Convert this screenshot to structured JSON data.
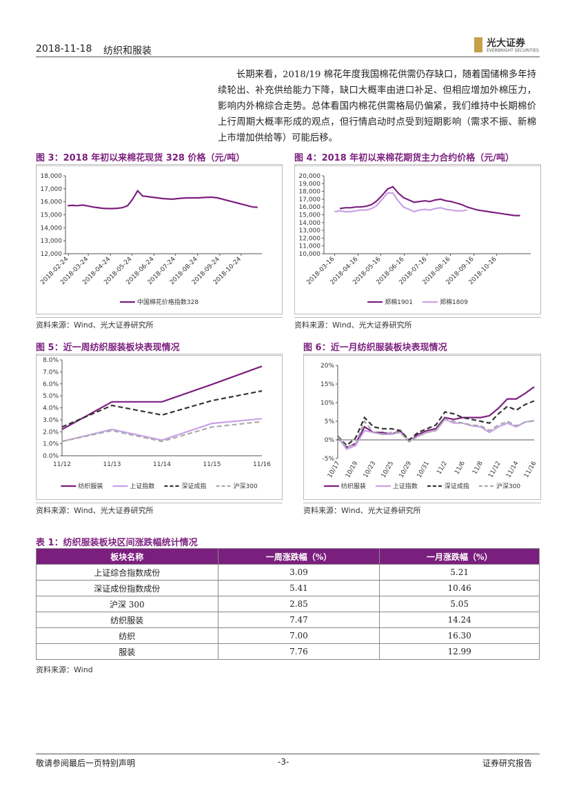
{
  "header": {
    "date": "2018-11-18",
    "section": "纺织和服装",
    "logo": "光大证券",
    "logo_en": "EVERBRIGHT SECURITIES"
  },
  "paragraph": "长期来看，2018/19 棉花年度我国棉花供需仍存缺口，随着国储棉多年持续轮出、补充供给能力下降，缺口大概率由进口补足、但相应增加外棉压力，影响内外棉综合走势。总体看国内棉花供需格局仍偏紧，我们维持中长期棉价上行周期大概率形成的观点，但行情启动时点受到短期影响（需求不振、新棉上市增加供给等）可能后移。",
  "chart_data": [
    {
      "type": "line",
      "title": "图 3：2018 年初以来棉花现货 328 价格（元/吨）",
      "source": "资料来源：Wind、光大证券研究所",
      "x": [
        "2018-02-23",
        "2018-03-02",
        "2018-03-09",
        "2018-03-16",
        "2018-03-23",
        "2018-03-30",
        "2018-04-06",
        "2018-04-13",
        "2018-04-20",
        "2018-04-27",
        "2018-05-04",
        "2018-05-11",
        "2018-05-18",
        "2018-05-25",
        "2018-06-01",
        "2018-06-08",
        "2018-06-15",
        "2018-06-22",
        "2018-06-29",
        "2018-07-06",
        "2018-07-13",
        "2018-07-20",
        "2018-07-27",
        "2018-08-03",
        "2018-08-10",
        "2018-08-17",
        "2018-08-24",
        "2018-08-31",
        "2018-09-07",
        "2018-09-14",
        "2018-09-21",
        "2018-09-28",
        "2018-10-05",
        "2018-10-12",
        "2018-10-19",
        "2018-10-26",
        "2018-11-02",
        "2018-11-09",
        "2018-11-16"
      ],
      "series": [
        {
          "name": "中国棉花价格指数328",
          "color": "#7b1f7e",
          "values": [
            15700,
            15720,
            15700,
            15750,
            15680,
            15600,
            15550,
            15500,
            15480,
            15480,
            15500,
            15550,
            15700,
            16200,
            16850,
            16450,
            16400,
            16350,
            16300,
            16250,
            16220,
            16200,
            16250,
            16280,
            16300,
            16300,
            16300,
            16320,
            16350,
            16350,
            16300,
            16200,
            16100,
            16000,
            15900,
            15800,
            15700,
            15600,
            15580
          ]
        }
      ],
      "xlim": [
        "2018-02-20",
        "2018-11-22"
      ],
      "xticks": [
        "2018-02-24",
        "2018-03-24",
        "2018-04-24",
        "2018-05-24",
        "2018-06-24",
        "2018-07-24",
        "2018-08-24",
        "2018-09-24",
        "2018-10-24"
      ],
      "ylim": [
        12000,
        18000
      ],
      "yticks": [
        {
          "value": 12000,
          "label": "12,000"
        },
        {
          "value": 13000,
          "label": "13,000"
        },
        {
          "value": 14000,
          "label": "14,000"
        },
        {
          "value": 15000,
          "label": "15,000"
        },
        {
          "value": 16000,
          "label": "16,000"
        },
        {
          "value": 17000,
          "label": "17,000"
        },
        {
          "value": 18000,
          "label": "18,000"
        }
      ],
      "grid": false
    },
    {
      "type": "line",
      "title": "图 4：2018 年初以来棉花期货主力合约价格（元/吨）",
      "source": "资料来源：Wind、光大证券研究所",
      "x": [
        "2018-03-16",
        "2018-03-23",
        "2018-03-30",
        "2018-04-06",
        "2018-04-13",
        "2018-04-20",
        "2018-04-27",
        "2018-05-04",
        "2018-05-11",
        "2018-05-18",
        "2018-05-25",
        "2018-06-01",
        "2018-06-08",
        "2018-06-15",
        "2018-06-22",
        "2018-06-29",
        "2018-07-06",
        "2018-07-13",
        "2018-07-20",
        "2018-07-27",
        "2018-08-03",
        "2018-08-10",
        "2018-08-17",
        "2018-08-24",
        "2018-08-31",
        "2018-09-07",
        "2018-09-14",
        "2018-09-21",
        "2018-09-28",
        "2018-10-05",
        "2018-10-12",
        "2018-10-19",
        "2018-10-26",
        "2018-11-02",
        "2018-11-09",
        "2018-11-16"
      ],
      "series": [
        {
          "name": "郑棉1901",
          "color": "#7b1f7e",
          "values": [
            null,
            15800,
            15900,
            15900,
            16000,
            16000,
            16100,
            16300,
            16800,
            17500,
            18300,
            18600,
            17800,
            17200,
            16900,
            16600,
            16700,
            16800,
            16700,
            16900,
            17000,
            16800,
            16700,
            16500,
            16300,
            16000,
            15800,
            15600,
            15500,
            15400,
            15300,
            15200,
            15100,
            15000,
            14900,
            14900
          ]
        },
        {
          "name": "郑棉1809",
          "color": "#c9a0e8",
          "values": [
            15400,
            15500,
            15400,
            15400,
            15500,
            15600,
            15600,
            15800,
            16200,
            17000,
            17800,
            17800,
            16800,
            16000,
            15700,
            15400,
            15600,
            15700,
            15600,
            15800,
            15900,
            15700,
            15600,
            15500,
            15500,
            15600,
            null,
            null,
            null,
            null,
            null,
            null,
            null,
            null,
            null,
            null
          ]
        }
      ],
      "xlim": [
        "2018-03-02",
        "2018-11-30"
      ],
      "xticks": [
        "2018-03-16",
        "2018-04-16",
        "2018-05-16",
        "2018-06-16",
        "2018-07-16",
        "2018-08-16",
        "2018-09-16",
        "2018-10-16"
      ],
      "ylim": [
        10000,
        20000
      ],
      "yticks": [
        {
          "value": 10000,
          "label": "10,000"
        },
        {
          "value": 11000,
          "label": "11,000"
        },
        {
          "value": 12000,
          "label": "12,000"
        },
        {
          "value": 13000,
          "label": "13,000"
        },
        {
          "value": 14000,
          "label": "14,000"
        },
        {
          "value": 15000,
          "label": "15,000"
        },
        {
          "value": 16000,
          "label": "16,000"
        },
        {
          "value": 17000,
          "label": "17,000"
        },
        {
          "value": 18000,
          "label": "18,000"
        },
        {
          "value": 19000,
          "label": "19,000"
        },
        {
          "value": 20000,
          "label": "20,000"
        }
      ],
      "grid": false
    },
    {
      "type": "line",
      "title": "图 5：近一周纺织服装板块表现情况",
      "source": "资料来源：Wind、光大证券研究所",
      "categories": [
        "11/12",
        "11/13",
        "11/14",
        "11/15",
        "11/16"
      ],
      "series": [
        {
          "name": "纺织服装",
          "color": "#7b1f7e",
          "dashed": false,
          "values": [
            2.2,
            4.5,
            4.5,
            5.95,
            7.47
          ]
        },
        {
          "name": "上证指数",
          "color": "#c9a0e8",
          "dashed": false,
          "values": [
            1.2,
            2.2,
            1.3,
            2.7,
            3.09
          ]
        },
        {
          "name": "深证成指",
          "color": "#333333",
          "dashed": true,
          "values": [
            2.4,
            4.2,
            3.4,
            4.6,
            5.41
          ]
        },
        {
          "name": "沪深300",
          "color": "#aaaaaa",
          "dashed": true,
          "values": [
            1.2,
            2.1,
            1.2,
            2.4,
            2.85
          ]
        }
      ],
      "ylim": [
        0,
        8
      ],
      "yticks": [
        {
          "value": 0,
          "label": "0.0%"
        },
        {
          "value": 1,
          "label": "1.0%"
        },
        {
          "value": 2,
          "label": "2.0%"
        },
        {
          "value": 3,
          "label": "3.0%"
        },
        {
          "value": 4,
          "label": "4.0%"
        },
        {
          "value": 5,
          "label": "5.0%"
        },
        {
          "value": 6,
          "label": "6.0%"
        },
        {
          "value": 7,
          "label": "7.0%"
        },
        {
          "value": 8,
          "label": "8.0%"
        }
      ],
      "grid": false
    },
    {
      "type": "line",
      "title": "图 6：近一月纺织服装板块表现情况",
      "source": "资料来源：Wind、光大证券研究所",
      "categories": [
        "10/17",
        null,
        "10/19",
        null,
        "10/23",
        null,
        "10/25",
        null,
        "10/29",
        null,
        "10/31",
        null,
        "11/2",
        null,
        "11/6",
        null,
        "11/8",
        null,
        "11/12",
        null,
        "11/14",
        null,
        "11/16"
      ],
      "series": [
        {
          "name": "纺织服装",
          "color": "#7b1f7e",
          "dashed": false,
          "values": [
            0.5,
            -2,
            -1,
            3.5,
            2,
            2,
            1.5,
            2.5,
            -0.5,
            1.5,
            2.5,
            3,
            6,
            5.5,
            6,
            6,
            6,
            6.5,
            8.5,
            11,
            11,
            12.5,
            14.24
          ]
        },
        {
          "name": "上证指数",
          "color": "#c9a0e8",
          "dashed": false,
          "values": [
            0.8,
            -2.5,
            -1.5,
            2.5,
            2,
            1.5,
            1.5,
            2,
            -0.3,
            1,
            2,
            2.5,
            5.5,
            4.5,
            4.5,
            3.8,
            3.5,
            2,
            3.5,
            4.5,
            3.5,
            4.8,
            5.21
          ]
        },
        {
          "name": "深证成指",
          "color": "#333333",
          "dashed": true,
          "values": [
            1,
            -1.5,
            0.5,
            6,
            3.5,
            3,
            3,
            2.5,
            0,
            2,
            3,
            4,
            7.5,
            7,
            6,
            5.5,
            5,
            4.5,
            7,
            9,
            8,
            9.5,
            10.46
          ]
        },
        {
          "name": "沪深300",
          "color": "#aaaaaa",
          "dashed": true,
          "values": [
            0.8,
            -2,
            -1,
            5,
            2,
            1.5,
            2,
            2,
            -0.5,
            1,
            2,
            2.5,
            5.5,
            5,
            4.5,
            4,
            3.8,
            2.5,
            4,
            5,
            3.8,
            4.8,
            5.05
          ]
        }
      ],
      "ylim": [
        -5,
        20
      ],
      "yticks": [
        {
          "value": -5,
          "label": "-5%"
        },
        {
          "value": 0,
          "label": "0%"
        },
        {
          "value": 5,
          "label": "5%"
        },
        {
          "value": 10,
          "label": "10%"
        },
        {
          "value": 15,
          "label": "15%"
        },
        {
          "value": 20,
          "label": "20%"
        }
      ],
      "grid": false
    }
  ],
  "table": {
    "title": "表 1：纺织服装板块区间涨跌幅统计情况",
    "header": [
      "板块名称",
      "一周涨跌幅（%）",
      "一月涨跌幅（%）"
    ],
    "rows": [
      [
        "上证综合指数成份",
        "3.09",
        "5.21"
      ],
      [
        "深证成份指数成份",
        "5.41",
        "10.46"
      ],
      [
        "沪深 300",
        "2.85",
        "5.05"
      ],
      [
        "纺织服装",
        "7.47",
        "14.24"
      ],
      [
        "纺织",
        "7.00",
        "16.30"
      ],
      [
        "服装",
        "7.76",
        "12.99"
      ]
    ],
    "source": "资料来源：Wind"
  },
  "footer": {
    "left": "敬请参阅最后一页特别声明",
    "center": "-3-",
    "right": "证券研究报告"
  }
}
